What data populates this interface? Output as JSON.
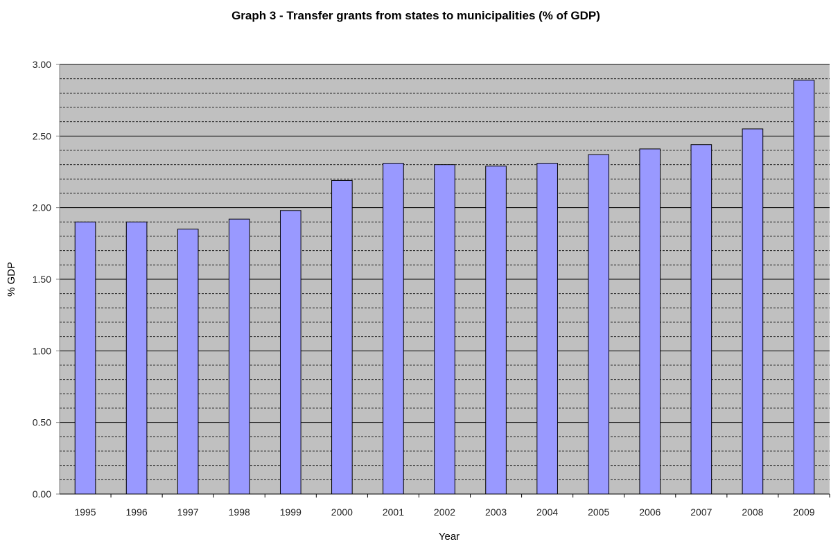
{
  "chart_data": {
    "type": "bar",
    "title": "Graph 3 - Transfer grants from states to municipalities (% of GDP)",
    "xlabel": "Year",
    "ylabel": "% GDP",
    "categories": [
      "1995",
      "1996",
      "1997",
      "1998",
      "1999",
      "2000",
      "2001",
      "2002",
      "2003",
      "2004",
      "2005",
      "2006",
      "2007",
      "2008",
      "2009"
    ],
    "values": [
      1.9,
      1.9,
      1.85,
      1.92,
      1.98,
      2.19,
      2.31,
      2.3,
      2.29,
      2.31,
      2.37,
      2.41,
      2.44,
      2.55,
      2.89
    ],
    "ylim": [
      0,
      3
    ],
    "yticks": [
      0,
      0.5,
      1,
      1.5,
      2,
      2.5,
      3
    ],
    "ytick_labels": [
      "0.00",
      "0.50",
      "1.00",
      "1.50",
      "2.00",
      "2.50",
      "3.00"
    ],
    "grid": true,
    "legend": "none",
    "colors": {
      "bar": "#9999ff",
      "bar_edge": "#000000",
      "plot_background": "#c0c0c0",
      "gridline": "#000000"
    }
  }
}
